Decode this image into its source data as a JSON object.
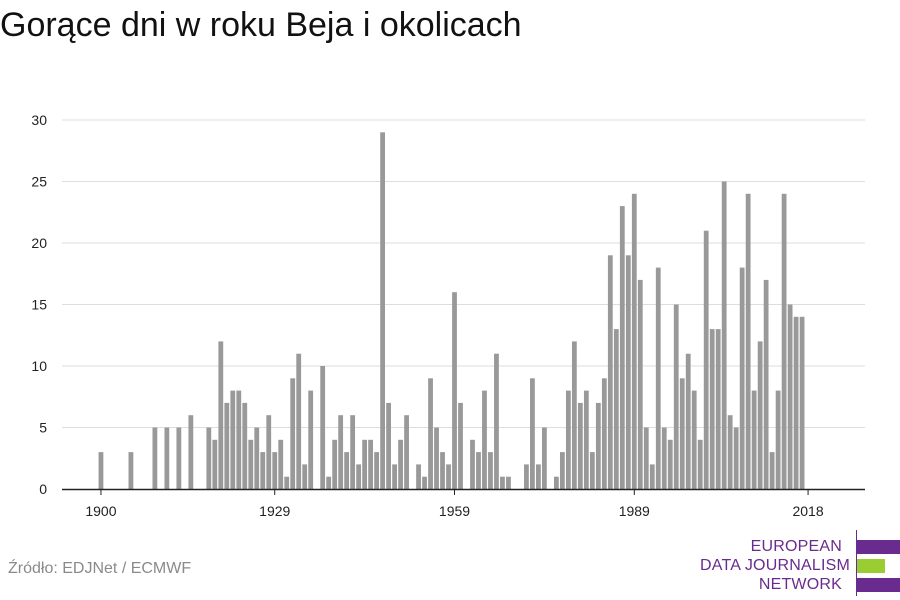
{
  "title": "Gorące dni w roku Beja i okolicach",
  "source": "Źródło: EDJNet / ECMWF",
  "logo": {
    "lines": [
      "EUROPEAN",
      "DATA JOURNALISM",
      "NETWORK"
    ],
    "colors": [
      "#6a2b8e",
      "#9acd32",
      "#6a2b8e"
    ]
  },
  "chart_data": {
    "type": "bar",
    "color": "#999999",
    "grid": true,
    "ylim": [
      0,
      30
    ],
    "yticks": [
      0,
      5,
      10,
      15,
      20,
      25,
      30
    ],
    "xticks": [
      1900,
      1929,
      1959,
      1989,
      2018
    ],
    "x_range": [
      1894,
      2028
    ],
    "x": [
      1900,
      1905,
      1909,
      1911,
      1913,
      1915,
      1918,
      1919,
      1920,
      1921,
      1922,
      1923,
      1924,
      1925,
      1926,
      1927,
      1928,
      1929,
      1930,
      1931,
      1932,
      1933,
      1934,
      1935,
      1937,
      1938,
      1939,
      1940,
      1941,
      1942,
      1943,
      1944,
      1945,
      1946,
      1947,
      1948,
      1949,
      1950,
      1951,
      1953,
      1954,
      1955,
      1956,
      1957,
      1958,
      1959,
      1960,
      1962,
      1963,
      1964,
      1965,
      1966,
      1967,
      1968,
      1971,
      1972,
      1973,
      1974,
      1976,
      1977,
      1978,
      1979,
      1980,
      1981,
      1982,
      1983,
      1984,
      1985,
      1986,
      1987,
      1988,
      1989,
      1990,
      1991,
      1992,
      1993,
      1994,
      1995,
      1996,
      1997,
      1998,
      1999,
      2000,
      2001,
      2002,
      2003,
      2004,
      2005,
      2006,
      2007,
      2008,
      2009,
      2010,
      2011,
      2012,
      2013,
      2014,
      2015,
      2016,
      2017,
      2018
    ],
    "values": [
      3,
      3,
      5,
      5,
      5,
      6,
      5,
      4,
      12,
      7,
      8,
      8,
      7,
      4,
      5,
      3,
      6,
      3,
      4,
      1,
      9,
      11,
      2,
      8,
      10,
      1,
      4,
      6,
      3,
      6,
      2,
      4,
      4,
      3,
      29,
      7,
      2,
      4,
      6,
      2,
      1,
      9,
      5,
      3,
      2,
      16,
      7,
      4,
      3,
      8,
      3,
      11,
      1,
      1,
      2,
      9,
      2,
      5,
      1,
      3,
      8,
      12,
      7,
      8,
      3,
      7,
      9,
      19,
      13,
      23,
      19,
      24,
      17,
      5,
      2,
      18,
      5,
      4,
      15,
      9,
      11,
      8,
      4,
      21,
      13,
      13,
      25,
      6,
      5,
      18,
      24,
      8,
      12,
      17,
      3,
      8,
      24,
      15,
      14,
      14,
      0
    ]
  }
}
